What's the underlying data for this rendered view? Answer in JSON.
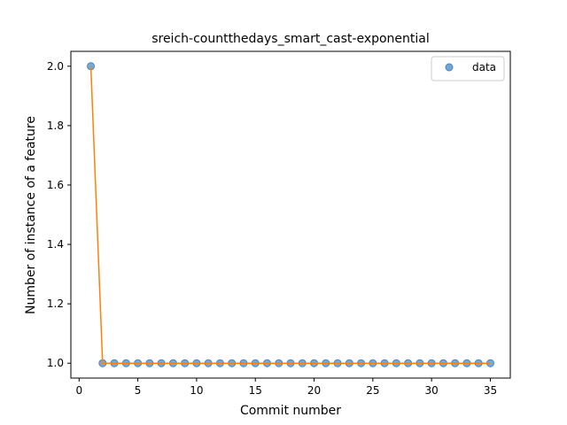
{
  "chart_data": {
    "type": "scatter",
    "title": "sreich-countthedays_smart_cast-exponential",
    "xlabel": "Commit number",
    "ylabel": "Number of instance of a feature",
    "xlim": [
      -0.7,
      36.7
    ],
    "ylim": [
      0.95,
      2.05
    ],
    "xticks": [
      0,
      5,
      10,
      15,
      20,
      25,
      30,
      35
    ],
    "xtick_labels": [
      "0",
      "5",
      "10",
      "15",
      "20",
      "25",
      "30",
      "35"
    ],
    "yticks": [
      1.0,
      1.2,
      1.4,
      1.6,
      1.8,
      2.0
    ],
    "ytick_labels": [
      "1.0",
      "1.2",
      "1.4",
      "1.6",
      "1.8",
      "2.0"
    ],
    "series": [
      {
        "name": "data",
        "kind": "scatter",
        "color": "#6fa7d6",
        "edge_color": "#4a84bf",
        "x": [
          1,
          2,
          3,
          4,
          5,
          6,
          7,
          8,
          9,
          10,
          11,
          12,
          13,
          14,
          15,
          16,
          17,
          18,
          19,
          20,
          21,
          22,
          23,
          24,
          25,
          26,
          27,
          28,
          29,
          30,
          31,
          32,
          33,
          34,
          35
        ],
        "y": [
          2,
          1,
          1,
          1,
          1,
          1,
          1,
          1,
          1,
          1,
          1,
          1,
          1,
          1,
          1,
          1,
          1,
          1,
          1,
          1,
          1,
          1,
          1,
          1,
          1,
          1,
          1,
          1,
          1,
          1,
          1,
          1,
          1,
          1,
          1
        ]
      },
      {
        "name": "fit",
        "kind": "line",
        "color": "#ff7f0e",
        "x": [
          1,
          2,
          3,
          4,
          5,
          6,
          7,
          8,
          9,
          10,
          11,
          12,
          13,
          14,
          15,
          16,
          17,
          18,
          19,
          20,
          21,
          22,
          23,
          24,
          25,
          26,
          27,
          28,
          29,
          30,
          31,
          32,
          33,
          34,
          35
        ],
        "y": [
          2,
          1,
          1,
          1,
          1,
          1,
          1,
          1,
          1,
          1,
          1,
          1,
          1,
          1,
          1,
          1,
          1,
          1,
          1,
          1,
          1,
          1,
          1,
          1,
          1,
          1,
          1,
          1,
          1,
          1,
          1,
          1,
          1,
          1,
          1
        ]
      }
    ],
    "legend": {
      "position": "top-right",
      "entries": [
        "data"
      ]
    }
  }
}
